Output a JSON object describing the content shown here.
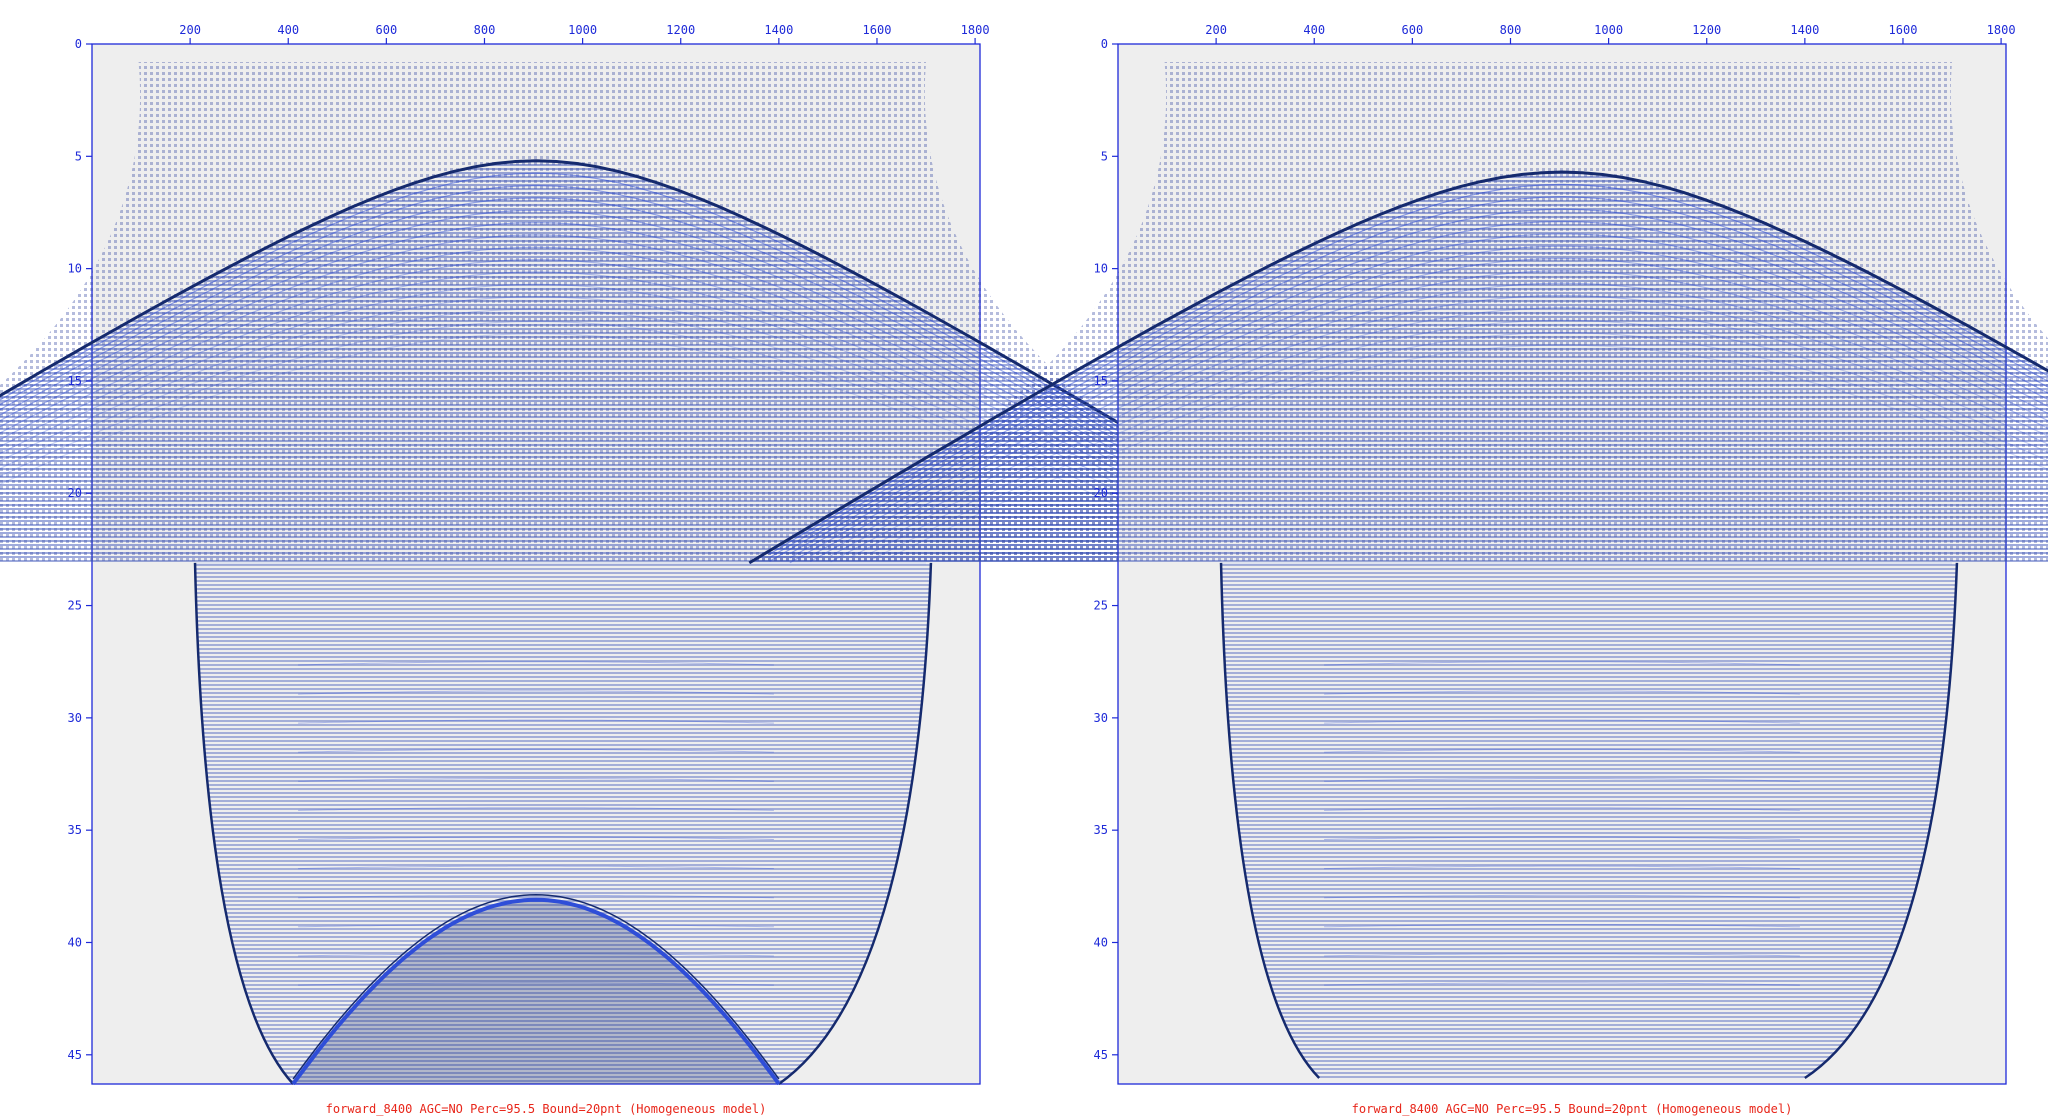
{
  "colors": {
    "axis": "#1e2ad8",
    "caption": "#e8261a",
    "plot_bg": "#eeeeee",
    "wave_dark": "#152a6e",
    "wave_blue": "#2f4ed8",
    "wave_light": "#dfe3ee",
    "ochre": "#d9c29a"
  },
  "chart_data": [
    {
      "type": "heatmap",
      "caption": "forward_8400 AGC=NO Perc=95.5 Bound=20pnt (Homogeneous model)",
      "x_ticks": [
        "200",
        "400",
        "600",
        "800",
        "1000",
        "1200",
        "1400",
        "1600",
        "1800"
      ],
      "y_ticks": [
        "0",
        "5",
        "10",
        "15",
        "20",
        "25",
        "30",
        "35",
        "40",
        "45"
      ],
      "xlim": [
        0,
        1810
      ],
      "ylim": [
        0,
        46.3
      ],
      "events": {
        "direct_wave_apex": {
          "x": 905,
          "t": 5.2
        },
        "direct_wave_end_t": 23.1,
        "layer_t": 23.1,
        "reflection_apex": {
          "x": 905,
          "t": 38.1
        },
        "reflection_edges_x": [
          410,
          1400
        ]
      }
    },
    {
      "type": "heatmap",
      "caption": "forward_8400 AGC=NO Perc=95.5 Bound=20pnt (Homogeneous model)",
      "x_ticks": [
        "200",
        "400",
        "600",
        "800",
        "1000",
        "1200",
        "1400",
        "1600",
        "1800"
      ],
      "y_ticks": [
        "0",
        "5",
        "10",
        "15",
        "20",
        "25",
        "30",
        "35",
        "40",
        "45"
      ],
      "xlim": [
        0,
        1810
      ],
      "ylim": [
        0,
        46.3
      ],
      "events": {
        "direct_wave_apex": {
          "x": 905,
          "t": 5.7
        },
        "direct_wave_end_t": 23.1,
        "layer_t": 23.1
      }
    }
  ]
}
